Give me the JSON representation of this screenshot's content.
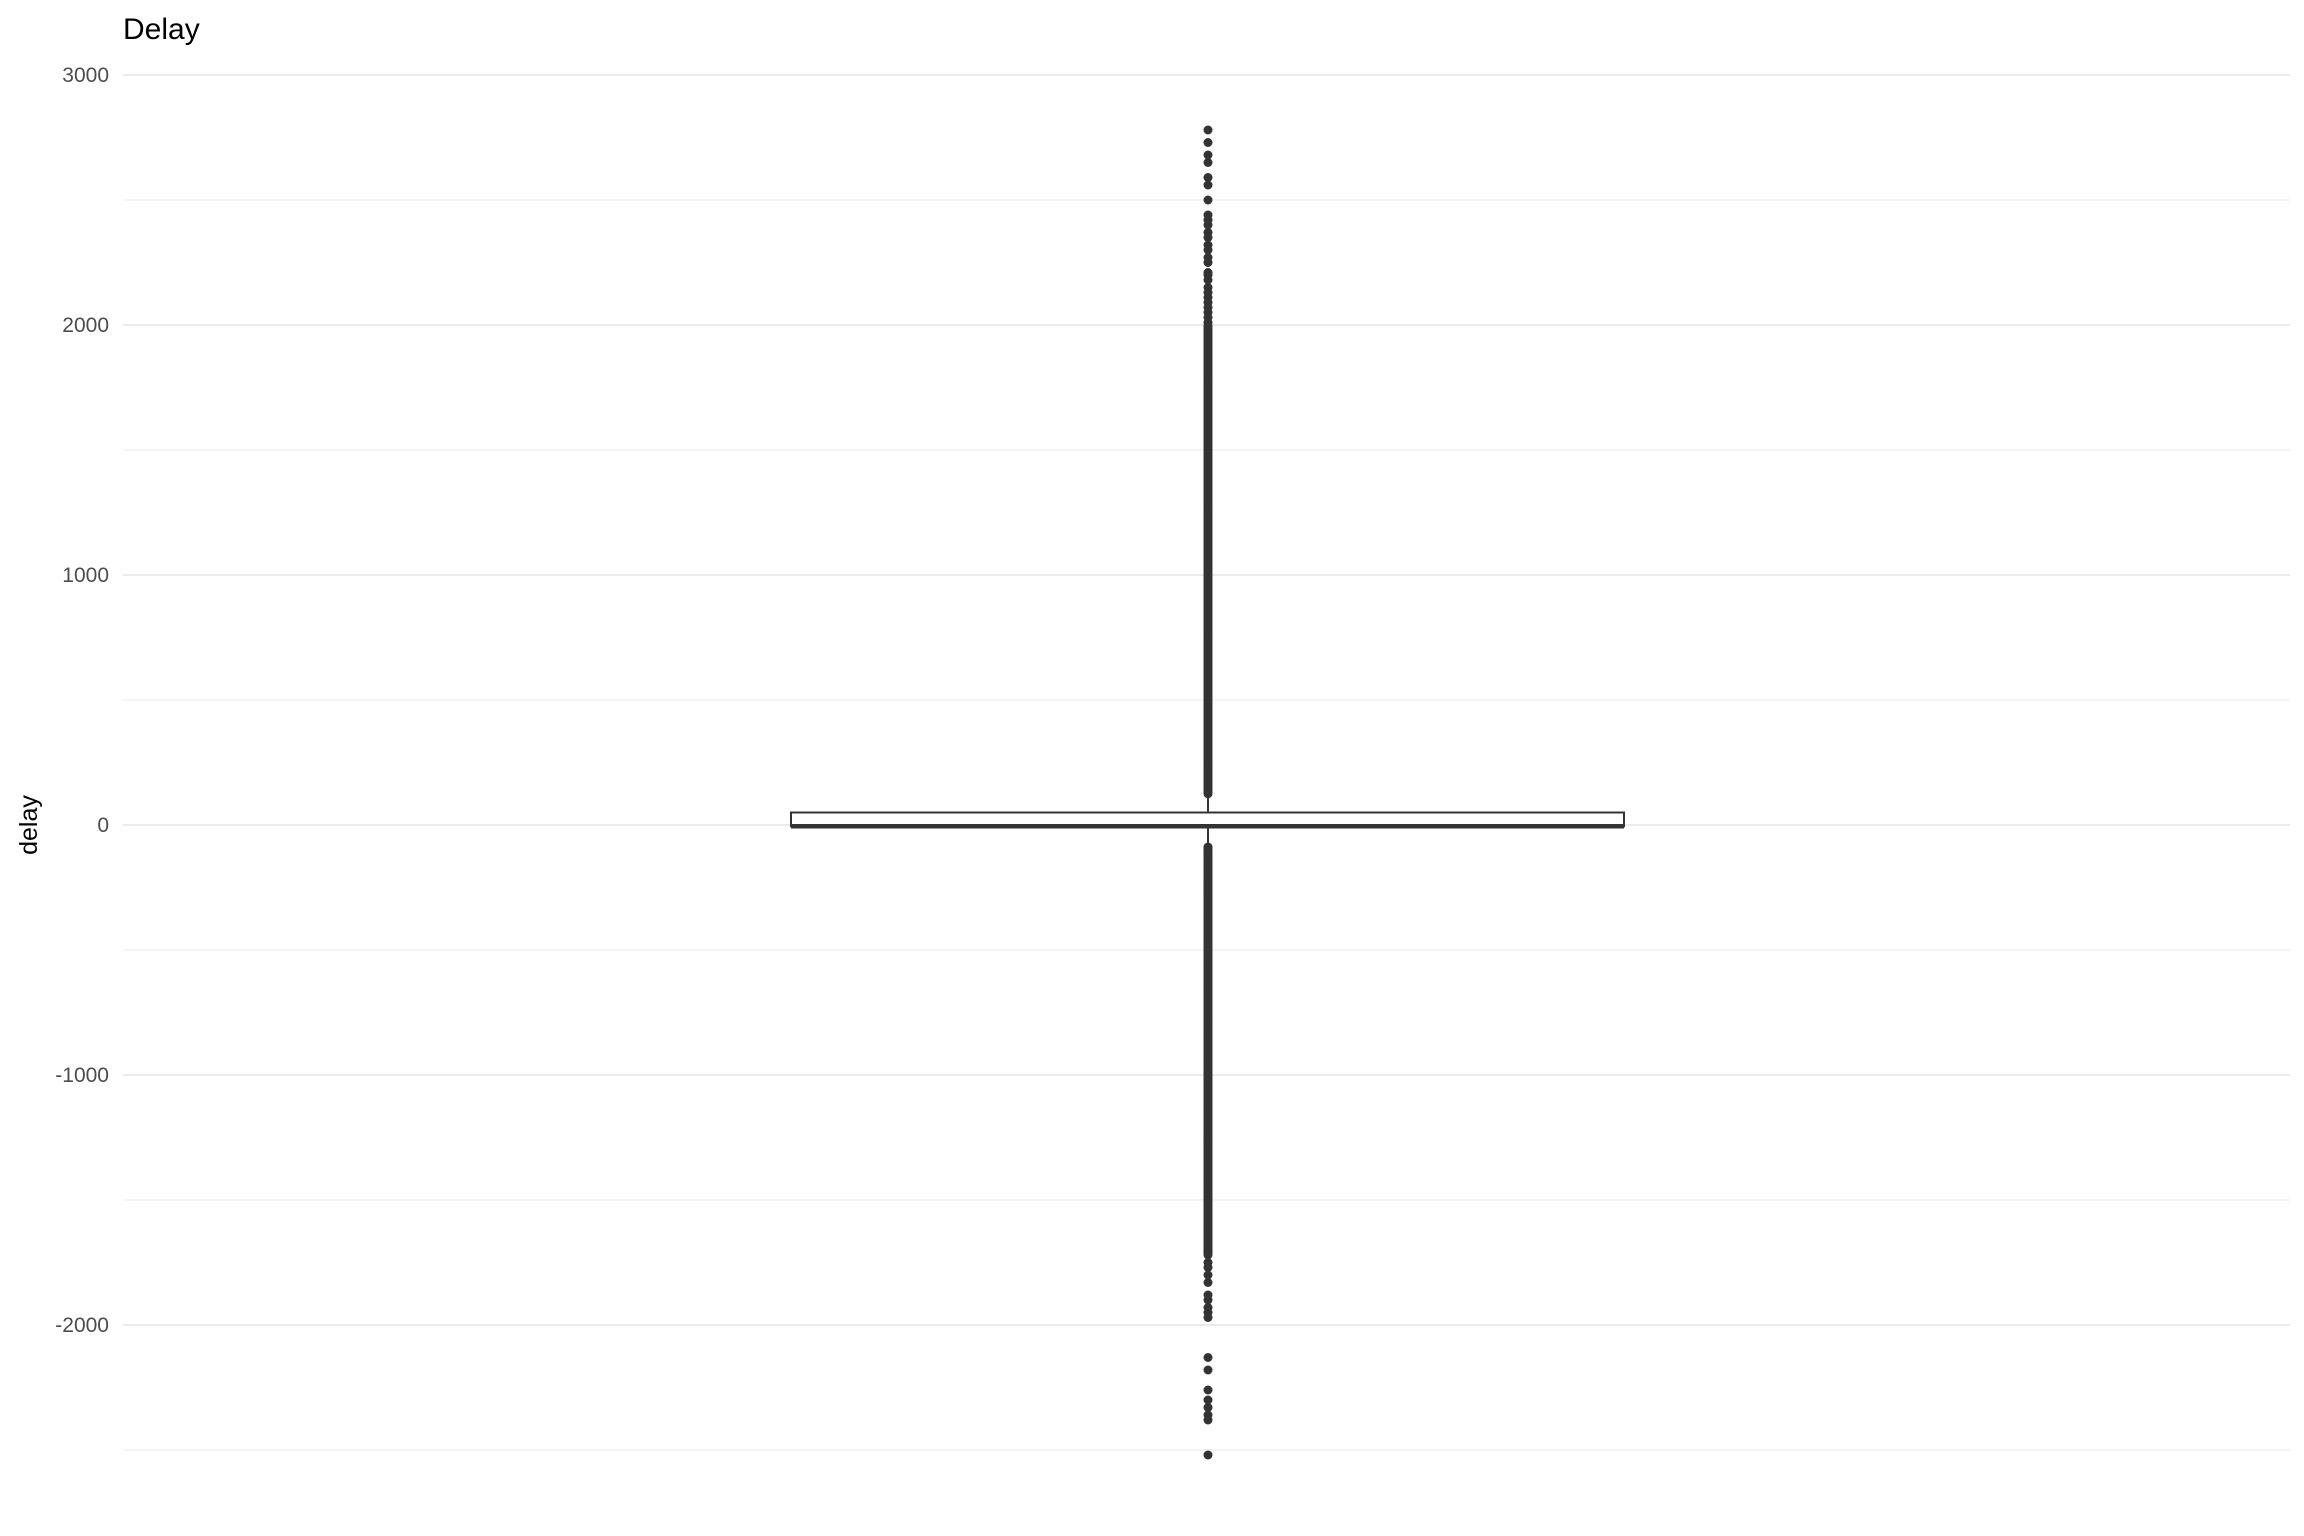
{
  "chart_data": {
    "type": "boxplot",
    "title": "Delay",
    "xlabel": "",
    "ylabel": "delay",
    "ylim": [
      -2600,
      3000
    ],
    "yticks": [
      3000,
      2000,
      1000,
      0,
      -1000,
      -2000
    ],
    "minor_gridlines": [
      2500,
      1500,
      500,
      -500,
      -1500,
      -2500
    ],
    "grid": true,
    "box": {
      "q1": -5,
      "median": -5,
      "q3": 50,
      "whisker_low": -80,
      "whisker_high": 120
    },
    "outliers_upper_sparse": [
      2780,
      2730,
      2680,
      2650,
      2590,
      2560,
      2500,
      2440,
      2420,
      2400,
      2370,
      2350,
      2320,
      2300,
      2270,
      2250,
      2210,
      2200,
      2180,
      2150,
      2130,
      2110,
      2090,
      2070,
      2050,
      2030,
      2010
    ],
    "outliers_upper_dense_range": [
      125,
      2000
    ],
    "outliers_lower_dense_range": [
      -1720,
      -85
    ],
    "outliers_lower_sparse": [
      -1750,
      -1770,
      -1800,
      -1830,
      -1880,
      -1900,
      -1930,
      -1950,
      -1970,
      -2130,
      -2180,
      -2260,
      -2300,
      -2330,
      -2360,
      -2380,
      -2520
    ],
    "colors": {
      "points": "#333333",
      "box_line": "#333333",
      "grid": "#ebebeb"
    }
  }
}
